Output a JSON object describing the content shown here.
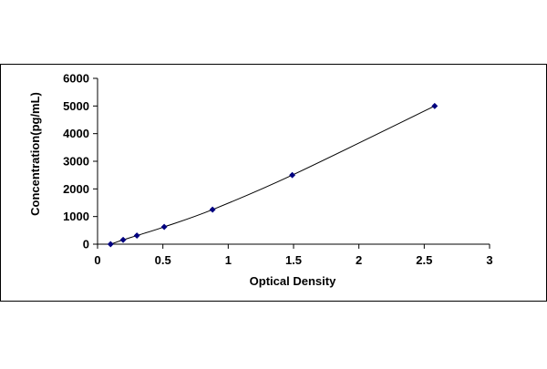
{
  "chart_data": {
    "type": "scatter",
    "title": "",
    "xlabel": "Optical Density",
    "ylabel": "Concentration(pg/mL)",
    "xlim": [
      0,
      3
    ],
    "ylim": [
      0,
      6000
    ],
    "x_ticks": [
      0,
      0.5,
      1,
      1.5,
      2,
      2.5,
      3
    ],
    "x_tick_labels": [
      "0",
      "0.5",
      "1",
      "1.5",
      "2",
      "2.5",
      "3"
    ],
    "y_ticks": [
      0,
      1000,
      2000,
      3000,
      4000,
      5000,
      6000
    ],
    "y_tick_labels": [
      "0",
      "1000",
      "2000",
      "3000",
      "4000",
      "5000",
      "6000"
    ],
    "grid": false,
    "legend": "none",
    "series": [
      {
        "marker": "diamond",
        "trendline": "smooth curve",
        "color": "#000080",
        "line_color": "#000000",
        "x": [
          0.1,
          0.196,
          0.301,
          0.51,
          0.88,
          1.49,
          2.58
        ],
        "y": [
          0,
          156,
          312,
          625,
          1250,
          2500,
          5000
        ]
      }
    ]
  }
}
